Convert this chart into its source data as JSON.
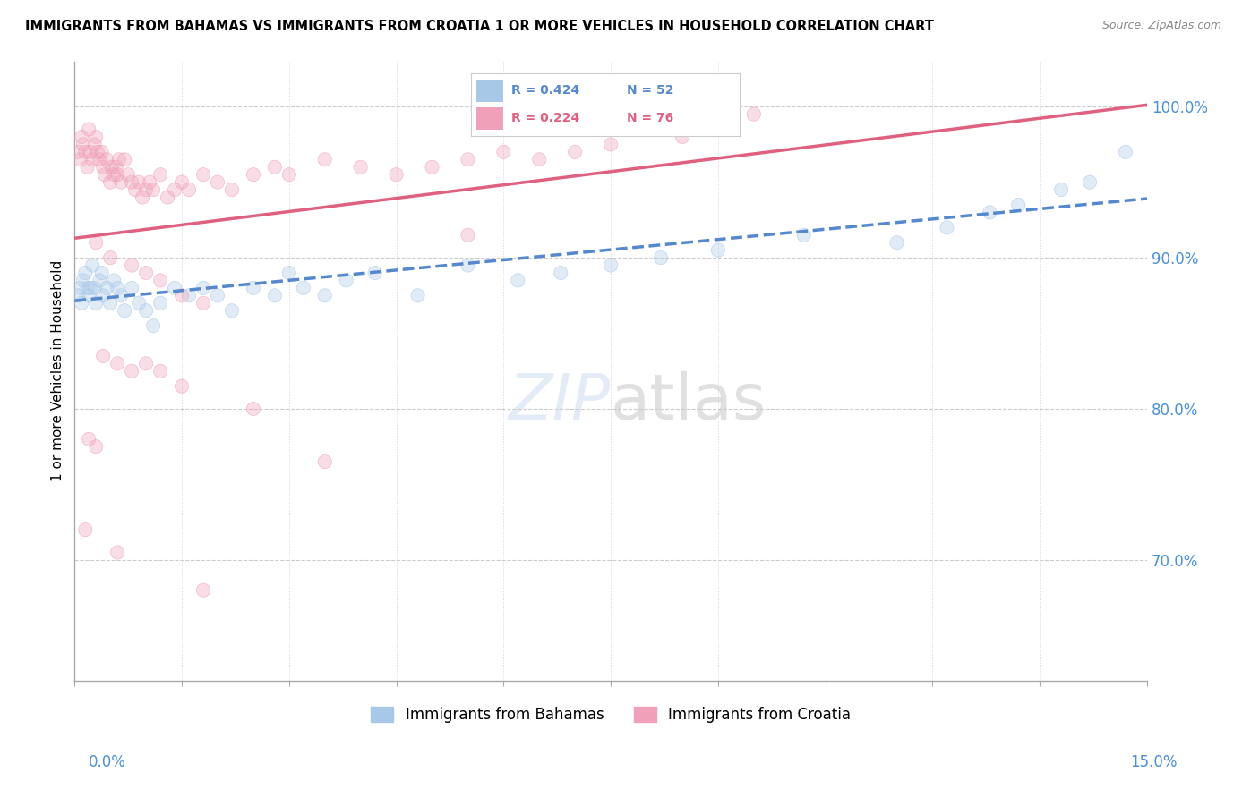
{
  "title": "IMMIGRANTS FROM BAHAMAS VS IMMIGRANTS FROM CROATIA 1 OR MORE VEHICLES IN HOUSEHOLD CORRELATION CHART",
  "source": "Source: ZipAtlas.com",
  "ylabel": "1 or more Vehicles in Household",
  "xmin": 0.0,
  "xmax": 15.0,
  "ymin": 62.0,
  "ymax": 103.0,
  "yticks": [
    70.0,
    80.0,
    90.0,
    100.0
  ],
  "legend_bahamas": "Immigrants from Bahamas",
  "legend_croatia": "Immigrants from Croatia",
  "R_bahamas": 0.424,
  "N_bahamas": 52,
  "R_croatia": 0.224,
  "N_croatia": 76,
  "color_bahamas": "#a8c8e8",
  "color_croatia": "#f0a0b8",
  "color_trend_bahamas": "#5588cc",
  "color_trend_croatia": "#e06080",
  "color_axis_labels": "#4a90d9",
  "watermark_zip": "ZIP",
  "watermark_atlas": "atlas",
  "bahamas_x": [
    0.05,
    0.08,
    0.1,
    0.12,
    0.15,
    0.18,
    0.2,
    0.22,
    0.25,
    0.28,
    0.3,
    0.35,
    0.38,
    0.4,
    0.45,
    0.5,
    0.55,
    0.6,
    0.65,
    0.7,
    0.8,
    0.9,
    1.0,
    1.1,
    1.2,
    1.4,
    1.6,
    1.8,
    2.0,
    2.2,
    2.5,
    2.8,
    3.0,
    3.2,
    3.5,
    3.8,
    4.2,
    4.8,
    5.5,
    6.2,
    6.8,
    7.5,
    8.2,
    9.0,
    10.2,
    11.5,
    12.2,
    12.8,
    13.2,
    13.8,
    14.2,
    14.7
  ],
  "bahamas_y": [
    87.5,
    88.0,
    87.0,
    88.5,
    89.0,
    88.0,
    87.5,
    88.0,
    89.5,
    88.0,
    87.0,
    88.5,
    89.0,
    87.5,
    88.0,
    87.0,
    88.5,
    88.0,
    87.5,
    86.5,
    88.0,
    87.0,
    86.5,
    85.5,
    87.0,
    88.0,
    87.5,
    88.0,
    87.5,
    86.5,
    88.0,
    87.5,
    89.0,
    88.0,
    87.5,
    88.5,
    89.0,
    87.5,
    89.5,
    88.5,
    89.0,
    89.5,
    90.0,
    90.5,
    91.5,
    91.0,
    92.0,
    93.0,
    93.5,
    94.5,
    95.0,
    97.0
  ],
  "croatia_x": [
    0.05,
    0.08,
    0.1,
    0.12,
    0.15,
    0.18,
    0.2,
    0.22,
    0.25,
    0.28,
    0.3,
    0.32,
    0.35,
    0.38,
    0.4,
    0.42,
    0.45,
    0.5,
    0.52,
    0.55,
    0.58,
    0.6,
    0.62,
    0.65,
    0.7,
    0.75,
    0.8,
    0.85,
    0.9,
    0.95,
    1.0,
    1.05,
    1.1,
    1.2,
    1.3,
    1.4,
    1.5,
    1.6,
    1.8,
    2.0,
    2.2,
    2.5,
    2.8,
    3.0,
    3.5,
    4.0,
    4.5,
    5.0,
    5.5,
    6.0,
    6.5,
    7.0,
    7.5,
    8.5,
    9.5,
    0.3,
    0.5,
    0.8,
    1.0,
    1.2,
    1.5,
    1.8,
    0.4,
    0.6,
    0.8,
    1.0,
    1.2,
    1.5,
    0.2,
    0.3,
    2.5,
    3.5,
    0.15,
    0.6,
    1.8,
    5.5
  ],
  "croatia_y": [
    97.0,
    96.5,
    98.0,
    97.5,
    97.0,
    96.0,
    98.5,
    97.0,
    96.5,
    97.5,
    98.0,
    97.0,
    96.5,
    97.0,
    96.0,
    95.5,
    96.5,
    95.0,
    96.0,
    95.5,
    96.0,
    95.5,
    96.5,
    95.0,
    96.5,
    95.5,
    95.0,
    94.5,
    95.0,
    94.0,
    94.5,
    95.0,
    94.5,
    95.5,
    94.0,
    94.5,
    95.0,
    94.5,
    95.5,
    95.0,
    94.5,
    95.5,
    96.0,
    95.5,
    96.5,
    96.0,
    95.5,
    96.0,
    96.5,
    97.0,
    96.5,
    97.0,
    97.5,
    98.0,
    99.5,
    91.0,
    90.0,
    89.5,
    89.0,
    88.5,
    87.5,
    87.0,
    83.5,
    83.0,
    82.5,
    83.0,
    82.5,
    81.5,
    78.0,
    77.5,
    80.0,
    76.5,
    72.0,
    70.5,
    68.0,
    91.5
  ]
}
